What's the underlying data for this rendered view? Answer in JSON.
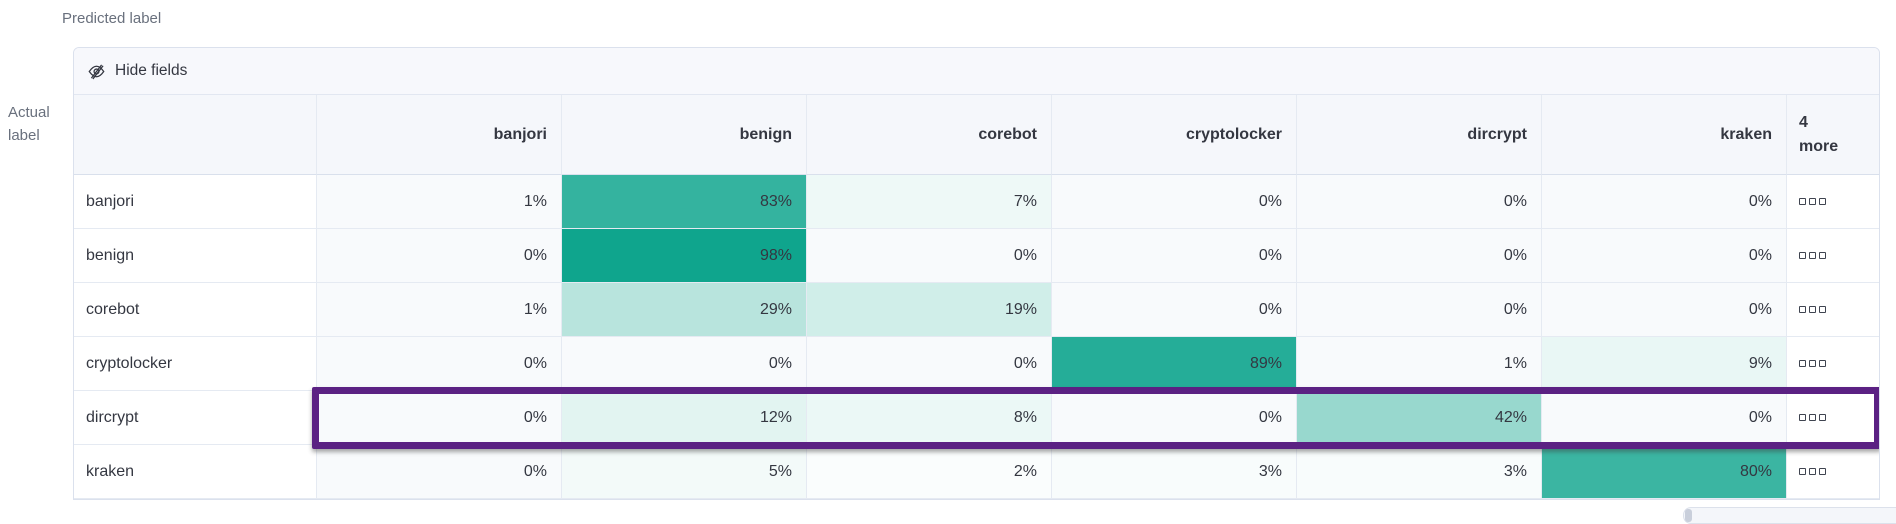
{
  "axis": {
    "predicted_label": "Predicted label",
    "actual_label_line1": "Actual",
    "actual_label_line2": "label"
  },
  "toolbar": {
    "hide_fields_label": "Hide fields"
  },
  "icons": {
    "hide_fields": "eye-closed-icon",
    "row_actions": "boxes-horizontal-icon"
  },
  "columns": [
    "banjori",
    "benign",
    "corebot",
    "cryptolocker",
    "dircrypt",
    "kraken"
  ],
  "more_header": {
    "line1": "4",
    "line2": "more"
  },
  "matrix": {
    "rows": [
      {
        "label": "banjori",
        "cells": [
          "1%",
          "83%",
          "7%",
          "0%",
          "0%",
          "0%"
        ]
      },
      {
        "label": "benign",
        "cells": [
          "0%",
          "98%",
          "0%",
          "0%",
          "0%",
          "0%"
        ]
      },
      {
        "label": "corebot",
        "cells": [
          "1%",
          "29%",
          "19%",
          "0%",
          "0%",
          "0%"
        ]
      },
      {
        "label": "cryptolocker",
        "cells": [
          "0%",
          "0%",
          "0%",
          "89%",
          "1%",
          "9%"
        ]
      },
      {
        "label": "dircrypt",
        "cells": [
          "0%",
          "12%",
          "8%",
          "0%",
          "42%",
          "0%"
        ],
        "highlighted": true
      },
      {
        "label": "kraken",
        "cells": [
          "0%",
          "5%",
          "2%",
          "3%",
          "3%",
          "80%"
        ]
      }
    ]
  },
  "colors": {
    "heat_base": "#0aa38b",
    "zero_cell_bg": "#f8fafc",
    "highlight_border": "#5b2183",
    "header_bg": "#f5f7fb",
    "toolbar_bg": "#f7f8fc",
    "text": "#343741",
    "muted_text": "#69707d"
  }
}
